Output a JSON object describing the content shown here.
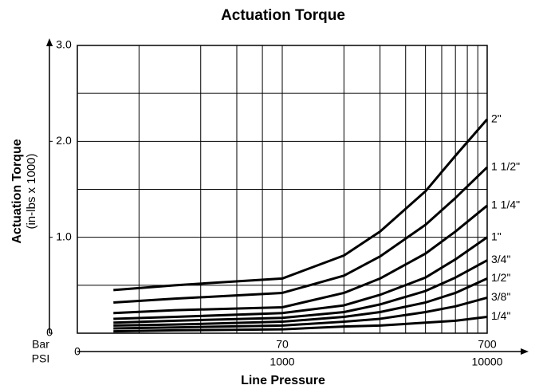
{
  "chart_data": {
    "type": "line",
    "title": "Actuation Torque",
    "ylabel": "Actuation Torque",
    "ylabel_sub": "(in-lbs x 1000)",
    "xlabel": "Line Pressure",
    "x_units": [
      "Bar",
      "PSI"
    ],
    "log_x": true,
    "xlim": [
      100,
      10000
    ],
    "ylim": [
      0,
      3
    ],
    "xticks": [
      {
        "value": 100,
        "label": "0"
      },
      1000,
      10000
    ],
    "xticks_bar": [
      {
        "value": 1000,
        "label": "70"
      },
      {
        "value": 10000,
        "label": "700"
      }
    ],
    "yticks": [
      0,
      {
        "value": 1,
        "label": "1.0"
      },
      {
        "value": 2,
        "label": "2.0"
      },
      {
        "value": 3,
        "label": "3.0"
      }
    ],
    "xgrid": [
      200,
      400,
      600,
      800,
      1000,
      2000,
      3000,
      4000,
      5000,
      6000,
      7000,
      8000,
      9000
    ],
    "ygrid": [
      0.5,
      1,
      1.5,
      2,
      2.5
    ],
    "grid": true,
    "x": [
      150,
      300,
      1000,
      2000,
      3000,
      5000,
      7000,
      10000
    ],
    "series": [
      {
        "name": "2\"",
        "color": "#000000",
        "values": [
          0.45,
          0.5,
          0.57,
          0.81,
          1.06,
          1.48,
          1.85,
          2.23
        ]
      },
      {
        "name": "1 1/2\"",
        "color": "#000000",
        "values": [
          0.32,
          0.36,
          0.42,
          0.6,
          0.8,
          1.13,
          1.41,
          1.73
        ]
      },
      {
        "name": "1 1/4\"",
        "color": "#000000",
        "values": [
          0.21,
          0.24,
          0.27,
          0.42,
          0.57,
          0.83,
          1.06,
          1.33
        ]
      },
      {
        "name": "1\"",
        "color": "#000000",
        "values": [
          0.15,
          0.17,
          0.21,
          0.29,
          0.4,
          0.58,
          0.77,
          1.0
        ]
      },
      {
        "name": "3/4\"",
        "color": "#000000",
        "values": [
          0.11,
          0.13,
          0.16,
          0.22,
          0.3,
          0.44,
          0.58,
          0.76
        ]
      },
      {
        "name": "1/2\"",
        "color": "#000000",
        "values": [
          0.08,
          0.09,
          0.12,
          0.17,
          0.22,
          0.32,
          0.42,
          0.57
        ]
      },
      {
        "name": "3/8\"",
        "color": "#000000",
        "values": [
          0.05,
          0.06,
          0.08,
          0.12,
          0.15,
          0.22,
          0.28,
          0.37
        ]
      },
      {
        "name": "1/4\"",
        "color": "#000000",
        "values": [
          0.02,
          0.03,
          0.04,
          0.07,
          0.08,
          0.11,
          0.13,
          0.17
        ]
      }
    ]
  }
}
